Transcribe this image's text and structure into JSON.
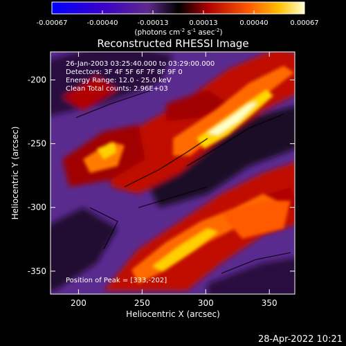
{
  "chart_data": {
    "type": "heatmap",
    "title": "Reconstructed RHESSI Image",
    "xlabel": "Heliocentric X (arcsec)",
    "ylabel": "Heliocentric Y (arcsec)",
    "xlim": [
      178,
      370
    ],
    "ylim": [
      -368,
      -178
    ],
    "x_ticks": [
      200,
      250,
      300,
      350
    ],
    "y_ticks": [
      -200,
      -250,
      -300,
      -350
    ],
    "colorbar": {
      "label_main": "(photons cm",
      "label_sup1": "-2",
      "label_mid": " s",
      "label_sup2": "-1",
      "label_end": " asec",
      "label_sup3": "-2",
      "label_close": ")",
      "range": [
        -0.00067,
        0.00067
      ],
      "tick_labels": [
        "-0.00067",
        "-0.00040",
        "-0.00013",
        "0.00013",
        "0.00040",
        "0.00067"
      ]
    },
    "annotations": [
      "26-Jan-2003 03:25:40.000 to 03:29:00.000",
      "Detectors: 3F 4F 5F 6F 7F 8F 9F 0",
      "Energy Range: 12.0 - 25.0 keV",
      "Clean     Total counts: 2.96E+03"
    ],
    "peak_label": "Position of Peak = [333,-202]",
    "peak": [
      333,
      -202
    ]
  },
  "footer": {
    "timestamp": "28-Apr-2022 10:21"
  }
}
